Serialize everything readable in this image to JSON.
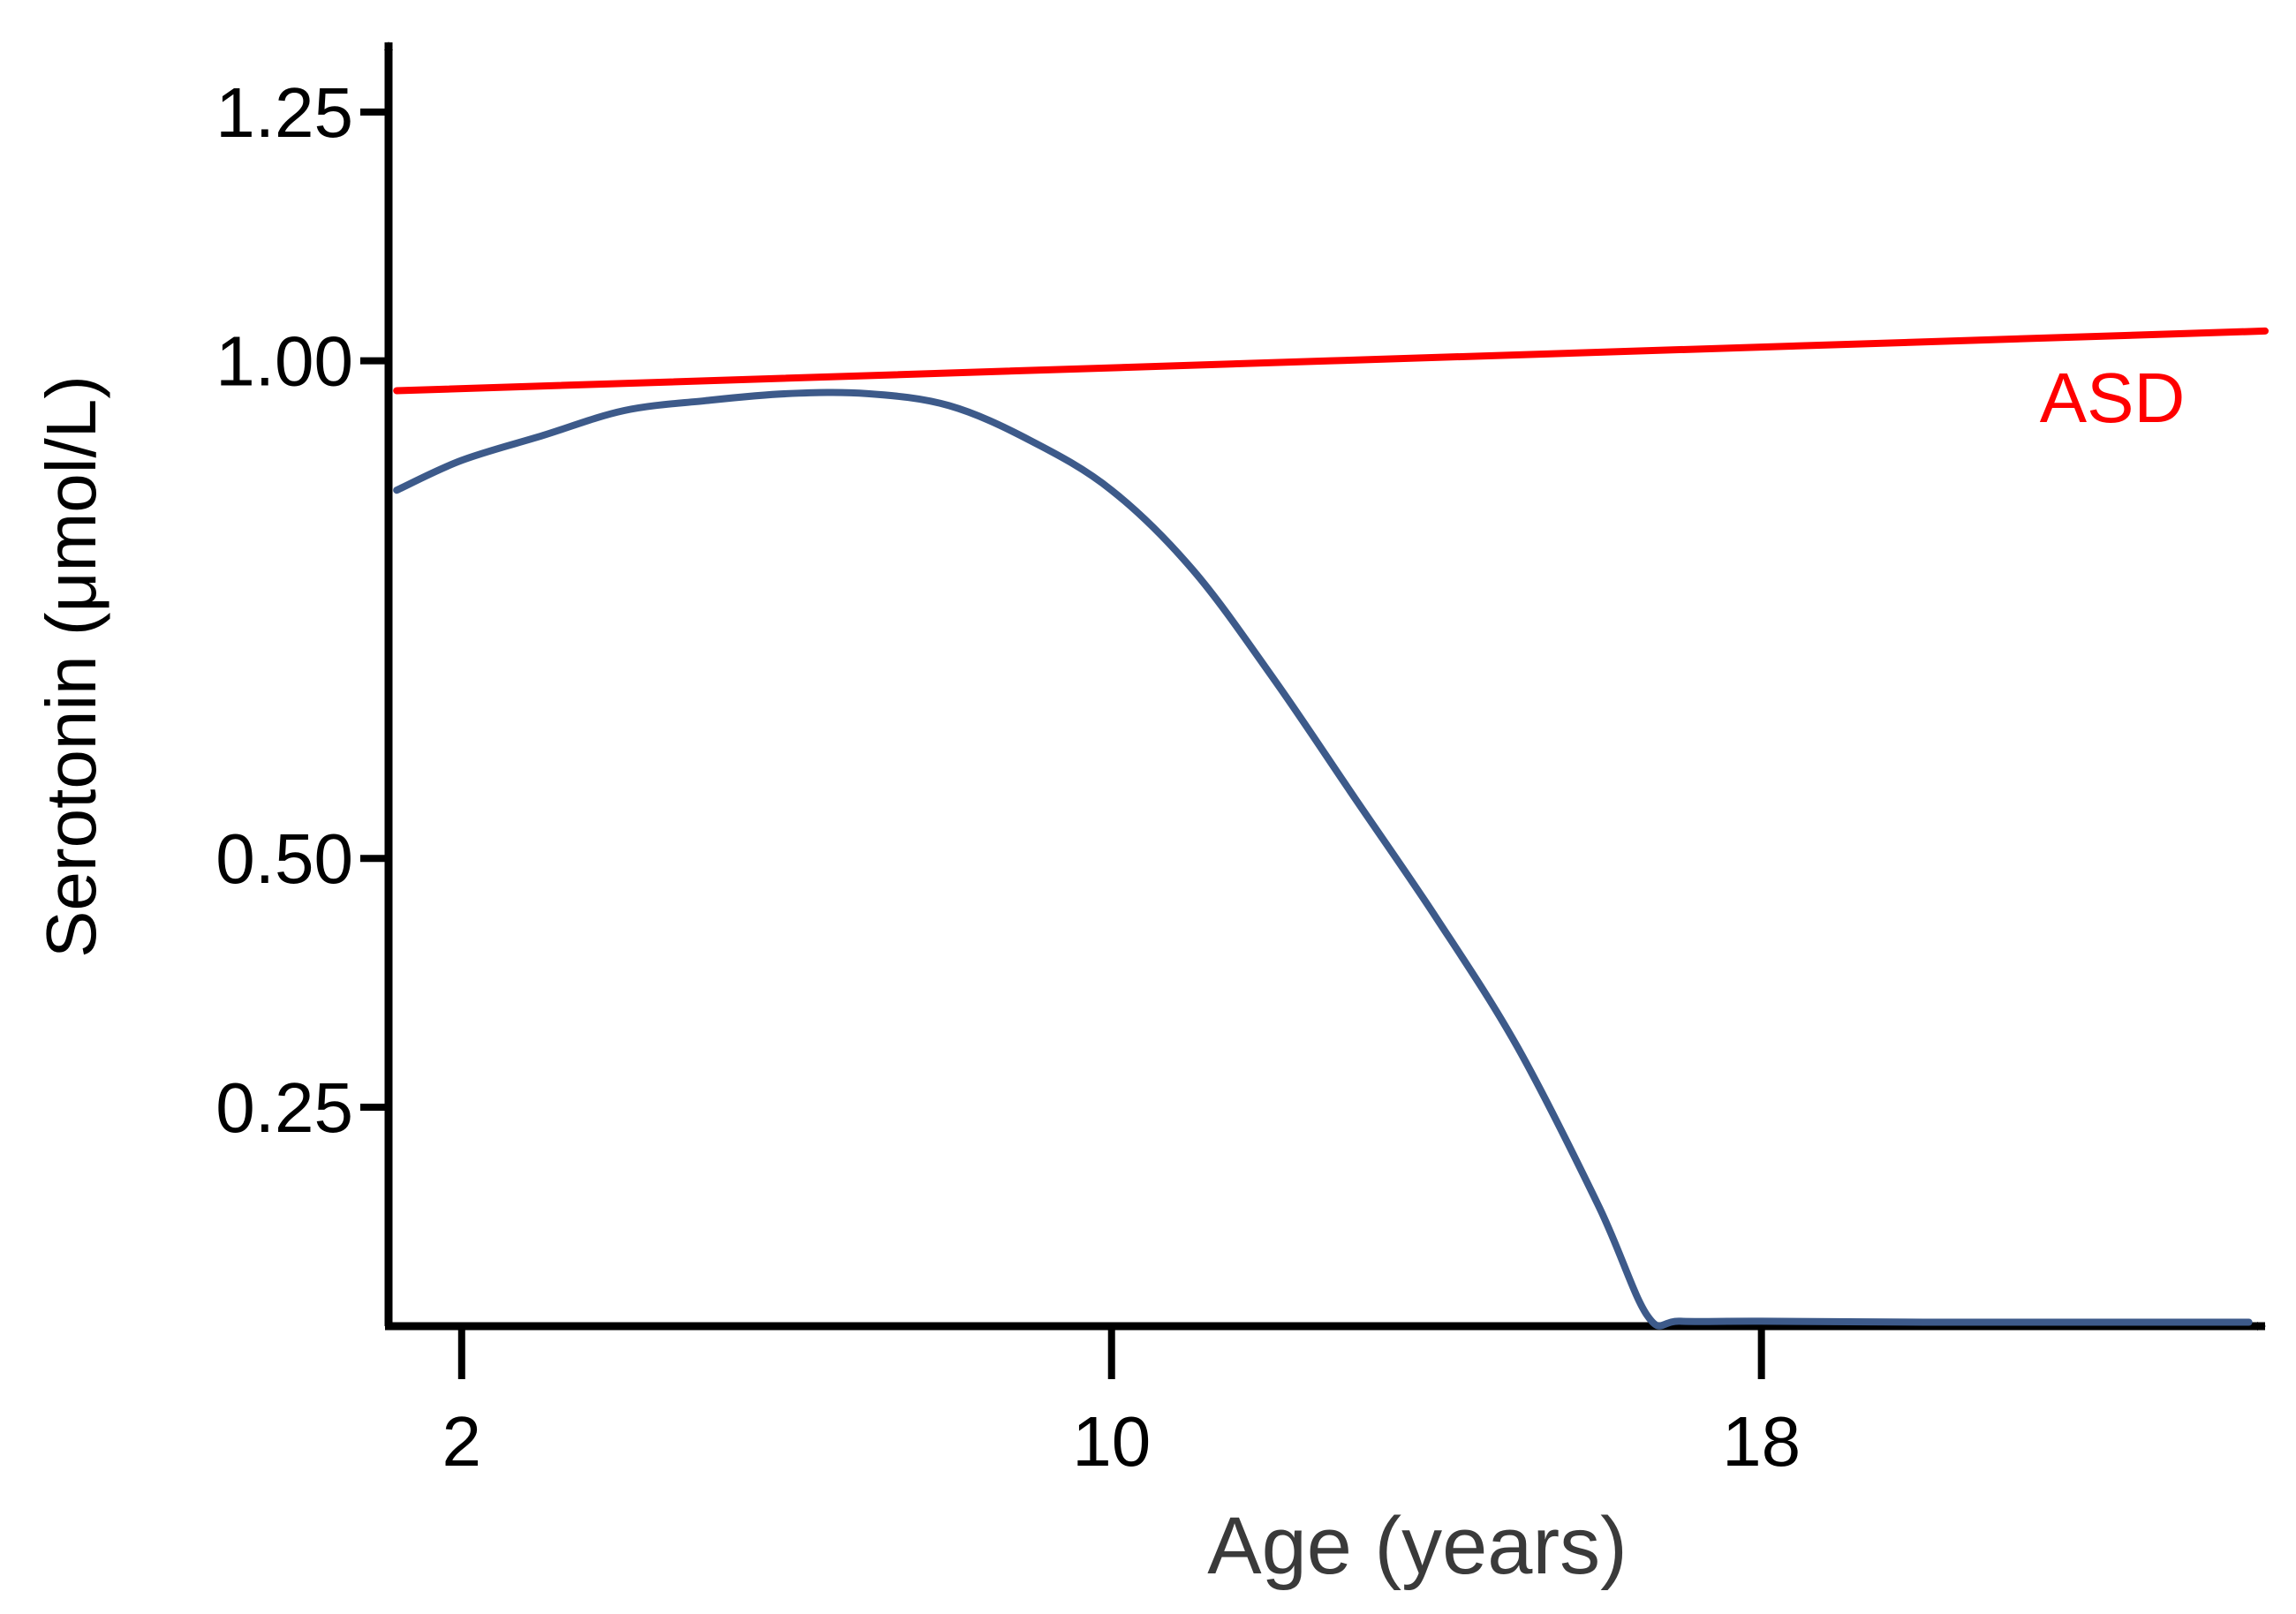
{
  "chart_data": {
    "type": "line",
    "title": "",
    "xlabel": "Age (years)",
    "ylabel": "Serotonin (μmol/L)",
    "xlim": [
      1.1,
      24.2
    ],
    "ylim": [
      0.03,
      1.32
    ],
    "x_ticks": [
      2,
      10,
      18
    ],
    "x_tick_labels": [
      "2",
      "10",
      "18"
    ],
    "y_ticks": [
      0.25,
      0.5,
      1.0,
      1.25
    ],
    "y_tick_labels": [
      "0.25",
      "0.50",
      "1.00",
      "1.25"
    ],
    "grid": false,
    "legend": "none",
    "series": [
      {
        "name": "ASD",
        "color": "#ff0000",
        "x": [
          1.2,
          24.2
        ],
        "y": [
          0.97,
          1.03
        ]
      },
      {
        "color": "#3d5a8a",
        "x": [
          1.2,
          2.0,
          3.0,
          4.0,
          5.0,
          6.0,
          7.0,
          8.0,
          9.0,
          10.0,
          11.0,
          12.0,
          13.0,
          14.0,
          15.0,
          16.0,
          16.6,
          17.0,
          18.0,
          20.0,
          22.0,
          24.0
        ],
        "y": [
          0.87,
          0.9,
          0.925,
          0.95,
          0.96,
          0.967,
          0.967,
          0.955,
          0.92,
          0.87,
          0.79,
          0.68,
          0.56,
          0.44,
          0.31,
          0.15,
          0.04,
          0.035,
          0.035,
          0.034,
          0.034,
          0.034
        ]
      }
    ]
  }
}
